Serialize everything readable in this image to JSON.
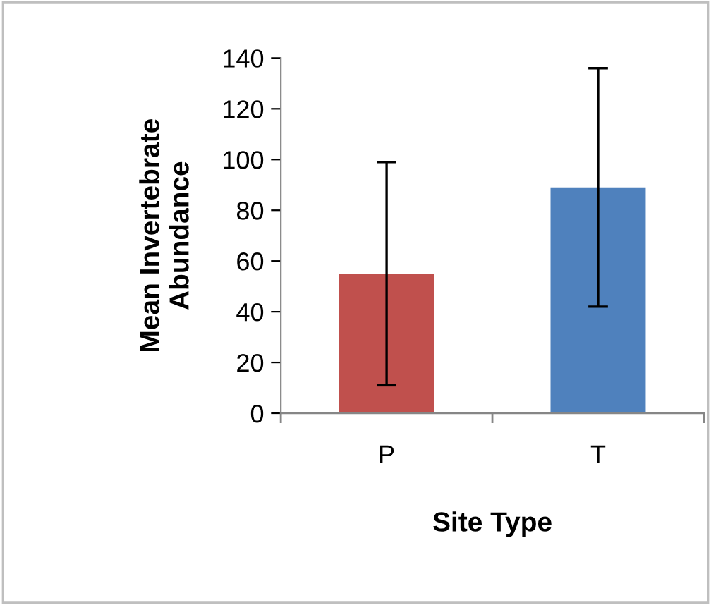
{
  "chart_data": {
    "type": "bar",
    "xlabel": "Site Type",
    "ylabel": "Mean Invertebrate\nAbundance",
    "categories": [
      "P",
      "T"
    ],
    "values": [
      55,
      89
    ],
    "colors": [
      "#c0504d",
      "#4f81bd"
    ],
    "errors": [
      44,
      47
    ],
    "ylim": [
      0,
      140
    ],
    "yticks": [
      0,
      20,
      40,
      60,
      80,
      100,
      120,
      140
    ],
    "grid": false
  }
}
